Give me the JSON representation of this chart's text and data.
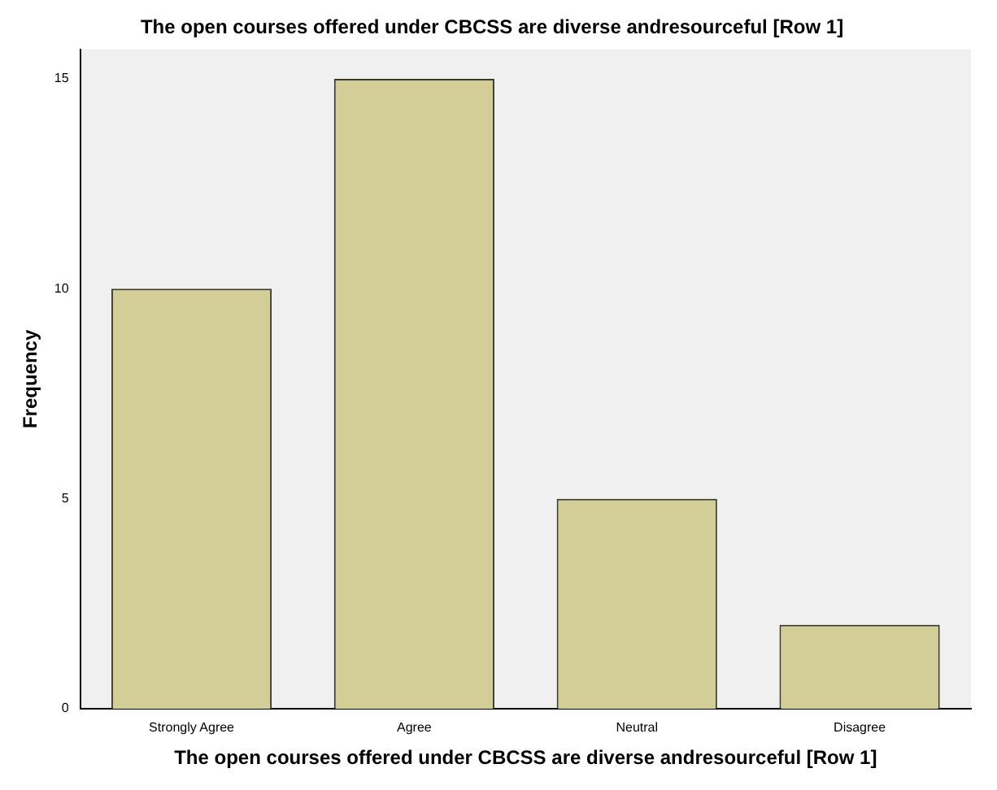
{
  "chart_data": {
    "type": "bar",
    "title": "The open courses offered under CBCSS are diverse andresourceful [Row 1]",
    "xlabel": "The open courses offered under CBCSS are diverse andresourceful [Row 1]",
    "ylabel": "Frequency",
    "categories": [
      "Strongly Agree",
      "Agree",
      "Neutral",
      "Disagree"
    ],
    "values": [
      10,
      15,
      5,
      2
    ],
    "color": "#d3ce97",
    "ylim": [
      0,
      15.7
    ],
    "yticks": [
      0,
      5,
      10,
      15
    ],
    "grid": false,
    "legend": false
  }
}
